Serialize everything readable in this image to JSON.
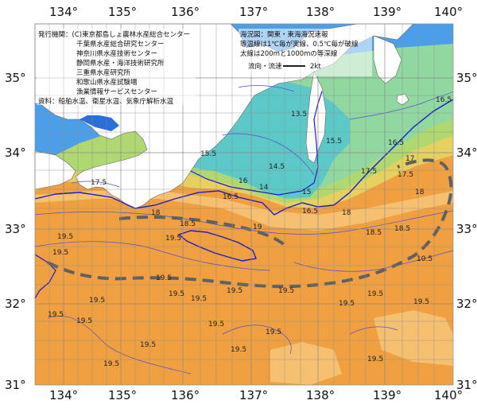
{
  "map": {
    "longitude_labels": [
      "134°",
      "135°",
      "136°",
      "137°",
      "138°",
      "139°",
      "140°"
    ],
    "latitude_labels": [
      "35°",
      "34°",
      "33°",
      "32°",
      "31°"
    ],
    "info_left": [
      "発行機関：(C)東京都島しょ農林水産総合センター",
      "千葉県水産総合研究センター",
      "神奈川県水産技術センター",
      "静岡県水産・海洋技術研究所",
      "三重県水産研究所",
      "和歌山県水産試験場",
      "漁業情報サービスセンター",
      "資料：船舶水温、衛星水温、気象庁解析水温"
    ],
    "info_right": [
      "海況図：関東・東海海況速報",
      "等温線は1℃毎が実線、0.5℃毎が破線",
      "太線は200mと1000mの等深線"
    ],
    "legend": {
      "label": "流向・流速",
      "unit": "2kt"
    },
    "isotherm_labels": [
      "19.5",
      "19.5",
      "19.5",
      "19.5",
      "19.5",
      "19.5",
      "19.5",
      "19.5",
      "19.5",
      "19.5",
      "19.5",
      "19.5",
      "19.5",
      "19.5",
      "19.5",
      "19.5",
      "19.5",
      "19.5",
      "19.5",
      "19.5",
      "18",
      "17.5",
      "16.5",
      "16.5",
      "16",
      "15.5",
      "15.5",
      "15",
      "14.5",
      "14",
      "13.5",
      "17",
      "16.5",
      "16.5",
      "17.5",
      "18",
      "17.5",
      "18.5",
      "18.5",
      "19",
      "18",
      "18.5",
      "10.5"
    ],
    "colors": {
      "warm": "#f0a040",
      "warm_light": "#f5c070",
      "mid": "#e8d060",
      "cool": "#a0d890",
      "cooler": "#60c8c0",
      "cold": "#4090e8",
      "land": "#ffffff",
      "grid": "#888888",
      "kuroshio": "#606060",
      "depth_line": "#1a1acc"
    }
  }
}
